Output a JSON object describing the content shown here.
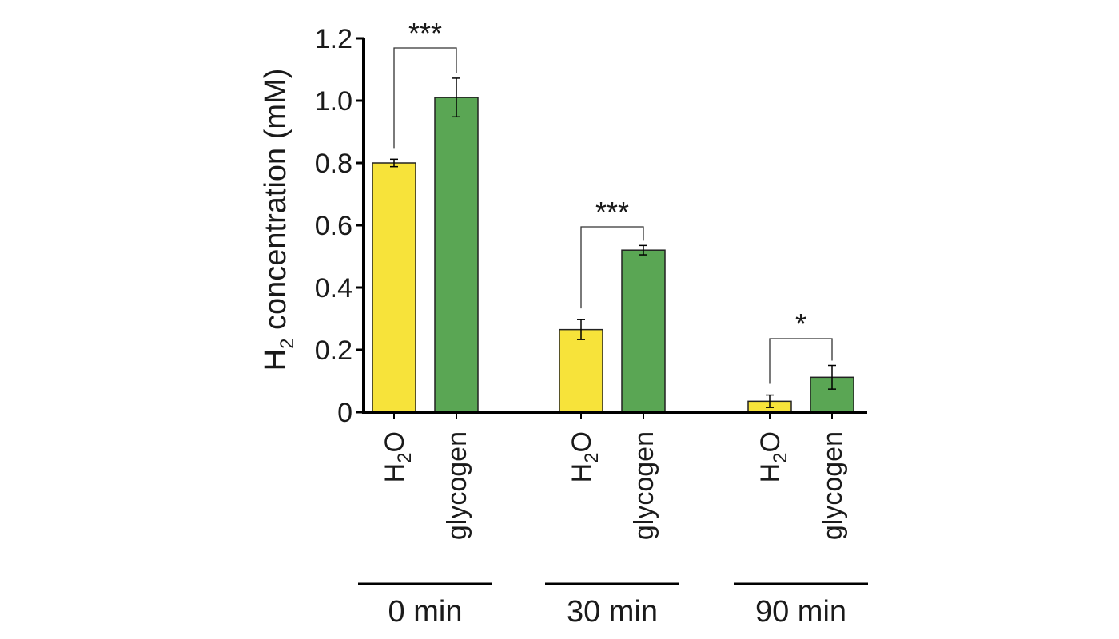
{
  "chart_data": {
    "type": "bar",
    "ylabel": {
      "prefix": "H",
      "sub": "2",
      "rest": " concentration (mM)"
    },
    "ylim": [
      0,
      1.2
    ],
    "yticks": [
      "0",
      "0.2",
      "0.4",
      "0.6",
      "0.8",
      "1.0",
      "1.2"
    ],
    "ytick_values": [
      0,
      0.2,
      0.4,
      0.6,
      0.8,
      1.0,
      1.2
    ],
    "groups": [
      {
        "label": "0 min",
        "bars": [
          {
            "category": "H2O",
            "value": 0.8,
            "error": 0.012,
            "color": "#f7e33a"
          },
          {
            "category": "glycogen",
            "value": 1.01,
            "error": 0.062,
            "color": "#5aa654"
          }
        ],
        "significance": "***"
      },
      {
        "label": "30 min",
        "bars": [
          {
            "category": "H2O",
            "value": 0.265,
            "error": 0.032,
            "color": "#f7e33a"
          },
          {
            "category": "glycogen",
            "value": 0.52,
            "error": 0.015,
            "color": "#5aa654"
          }
        ],
        "significance": "***"
      },
      {
        "label": "90 min",
        "bars": [
          {
            "category": "H2O",
            "value": 0.035,
            "error": 0.02,
            "color": "#f7e33a"
          },
          {
            "category": "glycogen",
            "value": 0.112,
            "error": 0.038,
            "color": "#5aa654"
          }
        ],
        "significance": "*"
      }
    ],
    "category_labels": {
      "H2O": {
        "main": "H",
        "sub": "2",
        "end": "O"
      },
      "glycogen": {
        "main": "glycogen"
      }
    },
    "grid": false,
    "legend": "none"
  }
}
